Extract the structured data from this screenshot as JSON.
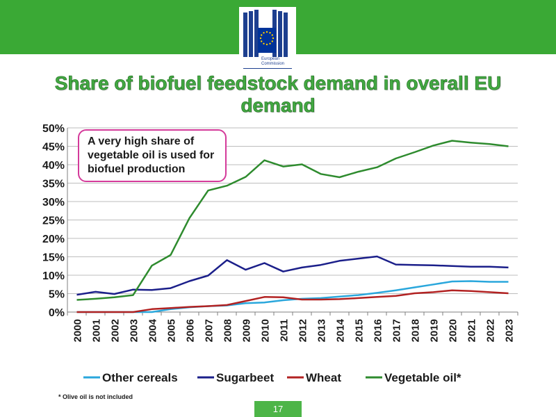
{
  "header": {
    "logo_lines": [
      "European",
      "Commission"
    ]
  },
  "slide": {
    "title": "Share of biofuel feedstock demand in overall EU demand",
    "callout": "A very high share of vegetable oil is used for biofuel production",
    "footnote": "* Olive oil is not included",
    "page_number": "17"
  },
  "colors": {
    "brand_green": "#3aa935",
    "callout_border": "#d43a9a"
  },
  "chart_data": {
    "type": "line",
    "title": "Share of biofuel feedstock demand in overall EU demand",
    "xlabel": "",
    "ylabel": "",
    "ylim": [
      0,
      0.5
    ],
    "yticks": [
      "0%",
      "5%",
      "10%",
      "15%",
      "20%",
      "25%",
      "30%",
      "35%",
      "40%",
      "45%",
      "50%"
    ],
    "grid": true,
    "legend_position": "bottom",
    "x": [
      "2000",
      "2001",
      "2002",
      "2003",
      "2004",
      "2005",
      "2006",
      "2007",
      "2008",
      "2009",
      "2010",
      "2011",
      "2012",
      "2013",
      "2014",
      "2015",
      "2016",
      "2017",
      "2018",
      "2019",
      "2020",
      "2021",
      "2022",
      "2023"
    ],
    "series": [
      {
        "name": "Other cereals",
        "color": "#2aa7dc",
        "values": [
          0.0,
          0.0,
          0.0,
          0.0,
          0.0,
          0.008,
          0.013,
          0.016,
          0.018,
          0.024,
          0.026,
          0.032,
          0.036,
          0.038,
          0.042,
          0.046,
          0.052,
          0.059,
          0.067,
          0.075,
          0.083,
          0.084,
          0.082,
          0.082
        ]
      },
      {
        "name": "Sugarbeet",
        "color": "#1b1f8a",
        "values": [
          0.047,
          0.055,
          0.049,
          0.061,
          0.06,
          0.065,
          0.084,
          0.099,
          0.141,
          0.115,
          0.133,
          0.11,
          0.121,
          0.128,
          0.139,
          0.145,
          0.151,
          0.129,
          0.128,
          0.127,
          0.125,
          0.123,
          0.123,
          0.121
        ]
      },
      {
        "name": "Wheat",
        "color": "#b22222",
        "values": [
          0.0,
          0.0,
          0.0,
          0.0,
          0.008,
          0.011,
          0.014,
          0.016,
          0.019,
          0.03,
          0.041,
          0.04,
          0.034,
          0.034,
          0.035,
          0.038,
          0.041,
          0.044,
          0.051,
          0.054,
          0.059,
          0.057,
          0.054,
          0.051
        ]
      },
      {
        "name": "Vegetable oil*",
        "color": "#2e8b2e",
        "values": [
          0.033,
          0.036,
          0.04,
          0.046,
          0.126,
          0.155,
          0.255,
          0.33,
          0.343,
          0.367,
          0.412,
          0.395,
          0.401,
          0.375,
          0.366,
          0.381,
          0.393,
          0.417,
          0.434,
          0.452,
          0.465,
          0.46,
          0.456,
          0.45
        ]
      }
    ]
  }
}
